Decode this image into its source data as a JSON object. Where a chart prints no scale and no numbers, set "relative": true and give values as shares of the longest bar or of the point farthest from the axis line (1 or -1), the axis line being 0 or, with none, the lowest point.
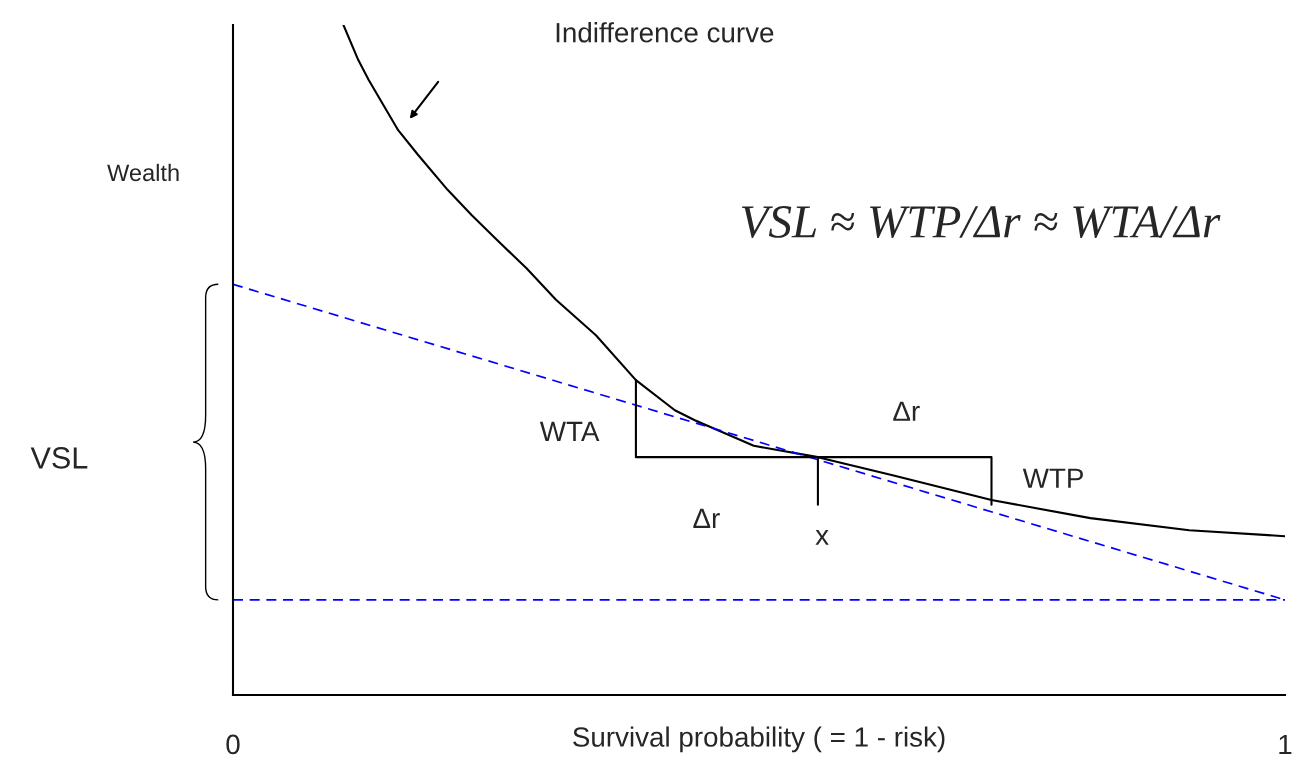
{
  "chart_data": {
    "type": "line",
    "relative": true,
    "xlabel": "Survival probability ( = 1 - risk)",
    "ylabel": "Wealth",
    "xlim": [
      0,
      1
    ],
    "xticks": [
      0,
      1
    ],
    "grid": false,
    "legend": false,
    "series": [
      {
        "color": "#000000",
        "line_style": "solid",
        "x": [
          0.105,
          0.119,
          0.129,
          0.157,
          0.176,
          0.204,
          0.227,
          0.251,
          0.279,
          0.307,
          0.345,
          0.383,
          0.42,
          0.439,
          0.495,
          0.556,
          0.627,
          0.721,
          0.815,
          0.909,
          1.0
        ],
        "values": [
          1.0,
          0.948,
          0.918,
          0.843,
          0.806,
          0.754,
          0.716,
          0.679,
          0.637,
          0.59,
          0.537,
          0.47,
          0.425,
          0.41,
          0.372,
          0.355,
          0.328,
          0.291,
          0.264,
          0.246,
          0.237
        ]
      },
      {
        "color": "#0000ff",
        "line_style": "dashed",
        "x": [
          0,
          1
        ],
        "values": [
          0.613,
          0.142
        ]
      },
      {
        "color": "#0000ff",
        "line_style": "dashed",
        "x": [
          0,
          1
        ],
        "values": [
          0.142,
          0.142
        ]
      },
      {
        "color": "#000000",
        "line_style": "solid",
        "x": [
          0.383,
          0.383,
          0.721,
          0.721
        ],
        "values": [
          0.47,
          0.355,
          0.355,
          0.284
        ]
      },
      {
        "color": "#000000",
        "line_style": "solid",
        "x": [
          0.556,
          0.556
        ],
        "values": [
          0.355,
          0.284
        ]
      }
    ],
    "annotations": [
      "Indifference curve",
      "VSL ≈ WTP/Δr ≈ WTA/Δr",
      "WTA",
      "Δr",
      "WTP",
      "Δr",
      "x",
      "VSL"
    ]
  }
}
